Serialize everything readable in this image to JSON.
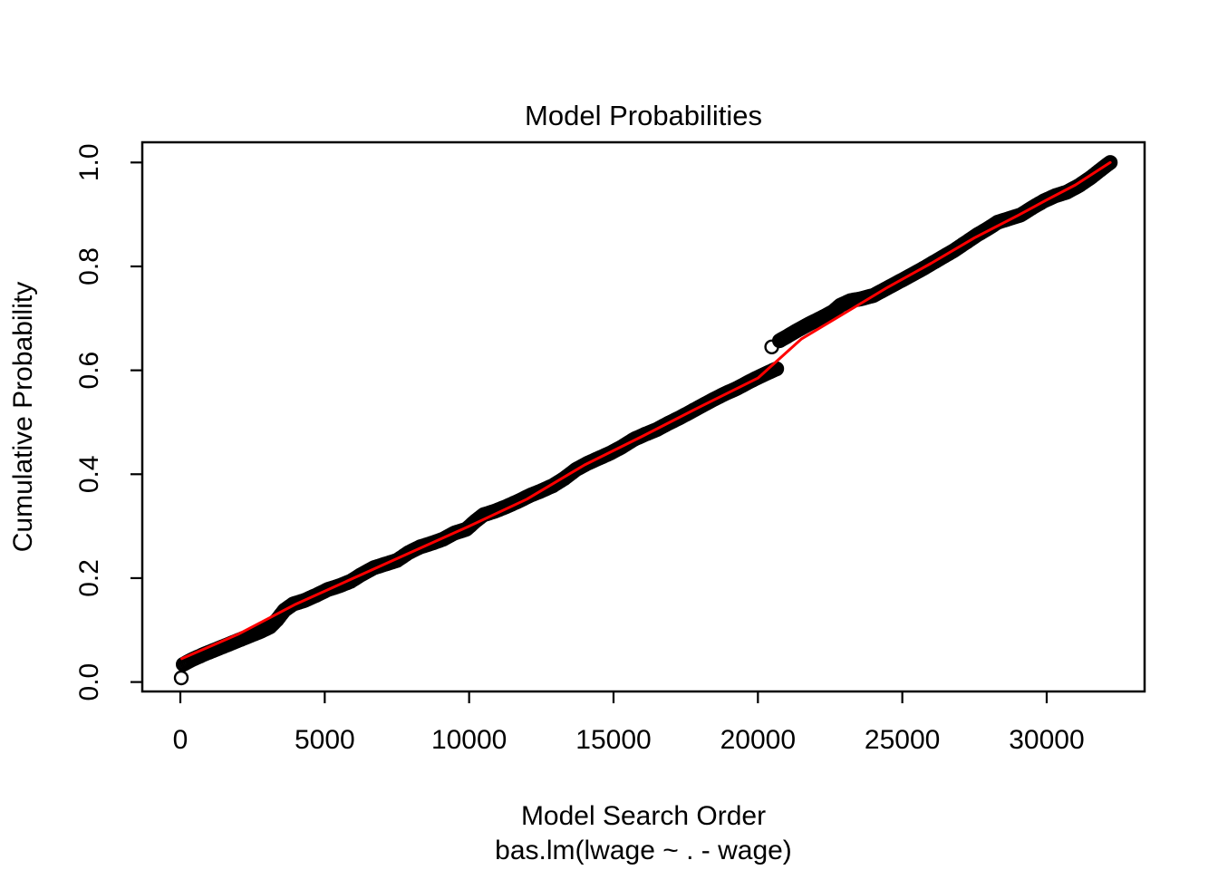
{
  "title": "Model Probabilities",
  "axes": {
    "x_label": "Model Search Order",
    "x_sublabel": "bas.lm(lwage ~ . - wage)",
    "y_label": "Cumulative Probability",
    "x_tick_labels": [
      "0",
      "5000",
      "10000",
      "15000",
      "20000",
      "25000",
      "30000"
    ],
    "y_tick_labels": [
      "0.0",
      "0.2",
      "0.4",
      "0.6",
      "0.8",
      "1.0"
    ]
  },
  "colors": {
    "points": "#000000",
    "fitted_line": "#FF0000",
    "axis": "#000000",
    "background": "#FFFFFF"
  },
  "chart_data": {
    "type": "scatter",
    "title": "Model Probabilities",
    "xlabel": "Model Search Order",
    "xlabel_line2": "bas.lm(lwage ~ . - wage)",
    "ylabel": "Cumulative Probability",
    "xlim": [
      -1300,
      33500
    ],
    "ylim": [
      -0.04,
      1.04
    ],
    "x_ticks": [
      0,
      5000,
      10000,
      15000,
      20000,
      25000,
      30000
    ],
    "y_ticks": [
      0.0,
      0.2,
      0.4,
      0.6,
      0.8,
      1.0
    ],
    "grid": false,
    "legend": "none",
    "series": [
      {
        "name": "cumulative_probability",
        "type": "scatter",
        "marker": "open-circle",
        "color": "#000000",
        "segments": [
          [
            [
              30,
              0.008
            ]
          ],
          [
            [
              100,
              0.034
            ],
            [
              400,
              0.043
            ],
            [
              800,
              0.053
            ],
            [
              1200,
              0.062
            ],
            [
              1600,
              0.071
            ],
            [
              2000,
              0.08
            ],
            [
              2400,
              0.089
            ],
            [
              2800,
              0.098
            ],
            [
              3100,
              0.106
            ],
            [
              3350,
              0.12
            ],
            [
              3600,
              0.138
            ],
            [
              3900,
              0.15
            ],
            [
              4300,
              0.157
            ],
            [
              4700,
              0.167
            ],
            [
              5100,
              0.178
            ],
            [
              5500,
              0.185
            ],
            [
              5900,
              0.194
            ],
            [
              6300,
              0.208
            ],
            [
              6700,
              0.22
            ],
            [
              7100,
              0.227
            ],
            [
              7500,
              0.234
            ],
            [
              7900,
              0.249
            ],
            [
              8300,
              0.26
            ],
            [
              8700,
              0.267
            ],
            [
              9100,
              0.275
            ],
            [
              9500,
              0.287
            ],
            [
              9900,
              0.294
            ],
            [
              10200,
              0.309
            ],
            [
              10500,
              0.322
            ],
            [
              10900,
              0.329
            ],
            [
              11300,
              0.338
            ],
            [
              11700,
              0.348
            ],
            [
              12100,
              0.359
            ],
            [
              12500,
              0.368
            ],
            [
              12900,
              0.378
            ],
            [
              13300,
              0.392
            ],
            [
              13700,
              0.409
            ],
            [
              14100,
              0.421
            ],
            [
              14500,
              0.431
            ],
            [
              14900,
              0.441
            ],
            [
              15300,
              0.453
            ],
            [
              15700,
              0.467
            ],
            [
              16100,
              0.477
            ],
            [
              16500,
              0.486
            ],
            [
              16900,
              0.498
            ],
            [
              17300,
              0.509
            ],
            [
              17700,
              0.521
            ],
            [
              18100,
              0.533
            ],
            [
              18500,
              0.545
            ],
            [
              18900,
              0.556
            ],
            [
              19300,
              0.566
            ],
            [
              19700,
              0.578
            ],
            [
              20100,
              0.589
            ],
            [
              20450,
              0.598
            ],
            [
              20650,
              0.603
            ]
          ],
          [
            [
              20480,
              0.645
            ]
          ],
          [
            [
              20750,
              0.657
            ],
            [
              21000,
              0.665
            ],
            [
              21400,
              0.678
            ],
            [
              21800,
              0.69
            ],
            [
              22200,
              0.701
            ],
            [
              22600,
              0.713
            ],
            [
              22850,
              0.725
            ],
            [
              23200,
              0.734
            ],
            [
              23600,
              0.738
            ],
            [
              24000,
              0.744
            ],
            [
              24400,
              0.756
            ],
            [
              24800,
              0.768
            ],
            [
              25200,
              0.78
            ],
            [
              25600,
              0.792
            ],
            [
              26000,
              0.805
            ],
            [
              26400,
              0.818
            ],
            [
              26800,
              0.831
            ],
            [
              27200,
              0.846
            ],
            [
              27600,
              0.861
            ],
            [
              28000,
              0.874
            ],
            [
              28300,
              0.885
            ],
            [
              28700,
              0.892
            ],
            [
              29100,
              0.899
            ],
            [
              29500,
              0.913
            ],
            [
              29900,
              0.926
            ],
            [
              30300,
              0.936
            ],
            [
              30700,
              0.943
            ],
            [
              31100,
              0.955
            ],
            [
              31500,
              0.97
            ],
            [
              31800,
              0.983
            ],
            [
              32100,
              0.996
            ],
            [
              32200,
              1.0
            ]
          ]
        ]
      },
      {
        "name": "fitted_line",
        "type": "line",
        "color": "#FF0000",
        "points": [
          [
            50,
            0.045
          ],
          [
            2000,
            0.092
          ],
          [
            4000,
            0.15
          ],
          [
            6000,
            0.2
          ],
          [
            8000,
            0.25
          ],
          [
            10000,
            0.3
          ],
          [
            12000,
            0.352
          ],
          [
            14000,
            0.418
          ],
          [
            16000,
            0.473
          ],
          [
            18000,
            0.53
          ],
          [
            20000,
            0.585
          ],
          [
            21500,
            0.66
          ],
          [
            23000,
            0.71
          ],
          [
            24500,
            0.76
          ],
          [
            26000,
            0.806
          ],
          [
            27500,
            0.855
          ],
          [
            29000,
            0.898
          ],
          [
            30000,
            0.928
          ],
          [
            31000,
            0.957
          ],
          [
            32200,
            1.0
          ]
        ]
      }
    ]
  }
}
